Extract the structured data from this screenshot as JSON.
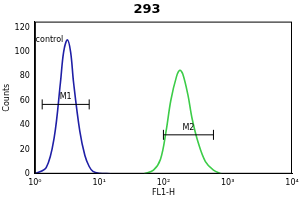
{
  "chart_data": {
    "type": "line",
    "title": "293",
    "x_label": "FL1-H",
    "y_label": "Counts",
    "log": "x",
    "xlim": [
      1,
      10000
    ],
    "xticks": [
      {
        "value": 1,
        "label": "10⁰"
      },
      {
        "value": 10,
        "label": "10¹"
      },
      {
        "value": 100,
        "label": "10²"
      },
      {
        "value": 1000,
        "label": "10³"
      },
      {
        "value": 10000,
        "label": "10⁴"
      }
    ],
    "ylim": [
      0,
      125
    ],
    "yticks": [
      0,
      20,
      40,
      60,
      80,
      100,
      120
    ],
    "grid": false,
    "series": [
      {
        "name": "control",
        "color": "#1f1fa6",
        "x": [
          1,
          1.5,
          2,
          2.5,
          2.8,
          3.2,
          3.6,
          4,
          5,
          6,
          7,
          8,
          10,
          15
        ],
        "values": [
          0,
          5,
          30,
          75,
          100,
          110,
          100,
          75,
          35,
          15,
          6,
          2,
          0.5,
          0
        ]
      },
      {
        "color": "#3ccc48",
        "x": [
          50,
          70,
          90,
          110,
          130,
          160,
          180,
          200,
          240,
          280,
          350,
          450,
          600,
          800
        ],
        "values": [
          0,
          3,
          12,
          35,
          60,
          80,
          85,
          82,
          65,
          45,
          25,
          10,
          3,
          0
        ]
      }
    ],
    "gates": [
      {
        "label": "M1",
        "range": [
          1.3,
          7
        ],
        "y": 57
      },
      {
        "label": "M2",
        "range": [
          100,
          600
        ],
        "y": 32
      }
    ]
  }
}
